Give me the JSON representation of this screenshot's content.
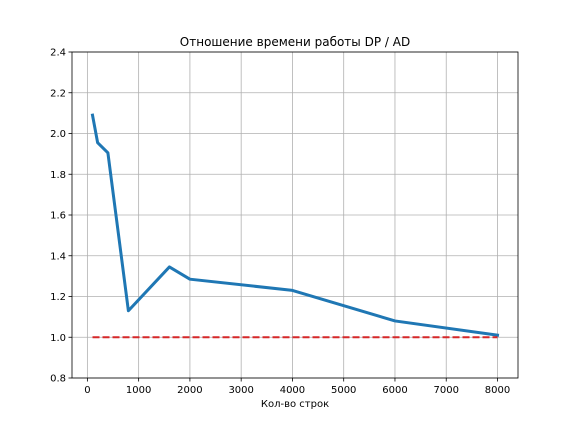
{
  "chart_data": {
    "type": "line",
    "title": "Отношение времени работы DP / AD",
    "xlabel": "Кол-во строк",
    "ylabel": "",
    "xlim": [
      -300,
      8400
    ],
    "ylim": [
      0.8,
      2.4
    ],
    "xticks": [
      0,
      1000,
      2000,
      3000,
      4000,
      5000,
      6000,
      7000,
      8000
    ],
    "xtick_labels": [
      "0",
      "1000",
      "2000",
      "3000",
      "4000",
      "5000",
      "6000",
      "7000",
      "8000"
    ],
    "yticks": [
      0.8,
      1.0,
      1.2,
      1.4,
      1.6,
      1.8,
      2.0,
      2.2,
      2.4
    ],
    "ytick_labels": [
      "0.8",
      "1.0",
      "1.2",
      "1.4",
      "1.6",
      "1.8",
      "2.0",
      "2.2",
      "2.4"
    ],
    "grid": true,
    "series": [
      {
        "style": "solid",
        "color": "#1f77b4",
        "x": [
          100,
          200,
          400,
          800,
          1600,
          2000,
          4000,
          6000,
          8000
        ],
        "y": [
          2.09,
          1.955,
          1.905,
          1.13,
          1.345,
          1.285,
          1.23,
          1.08,
          1.01
        ]
      },
      {
        "style": "dashed",
        "color": "#d62728",
        "x": [
          100,
          8000
        ],
        "y": [
          1.0,
          1.0
        ]
      }
    ]
  }
}
